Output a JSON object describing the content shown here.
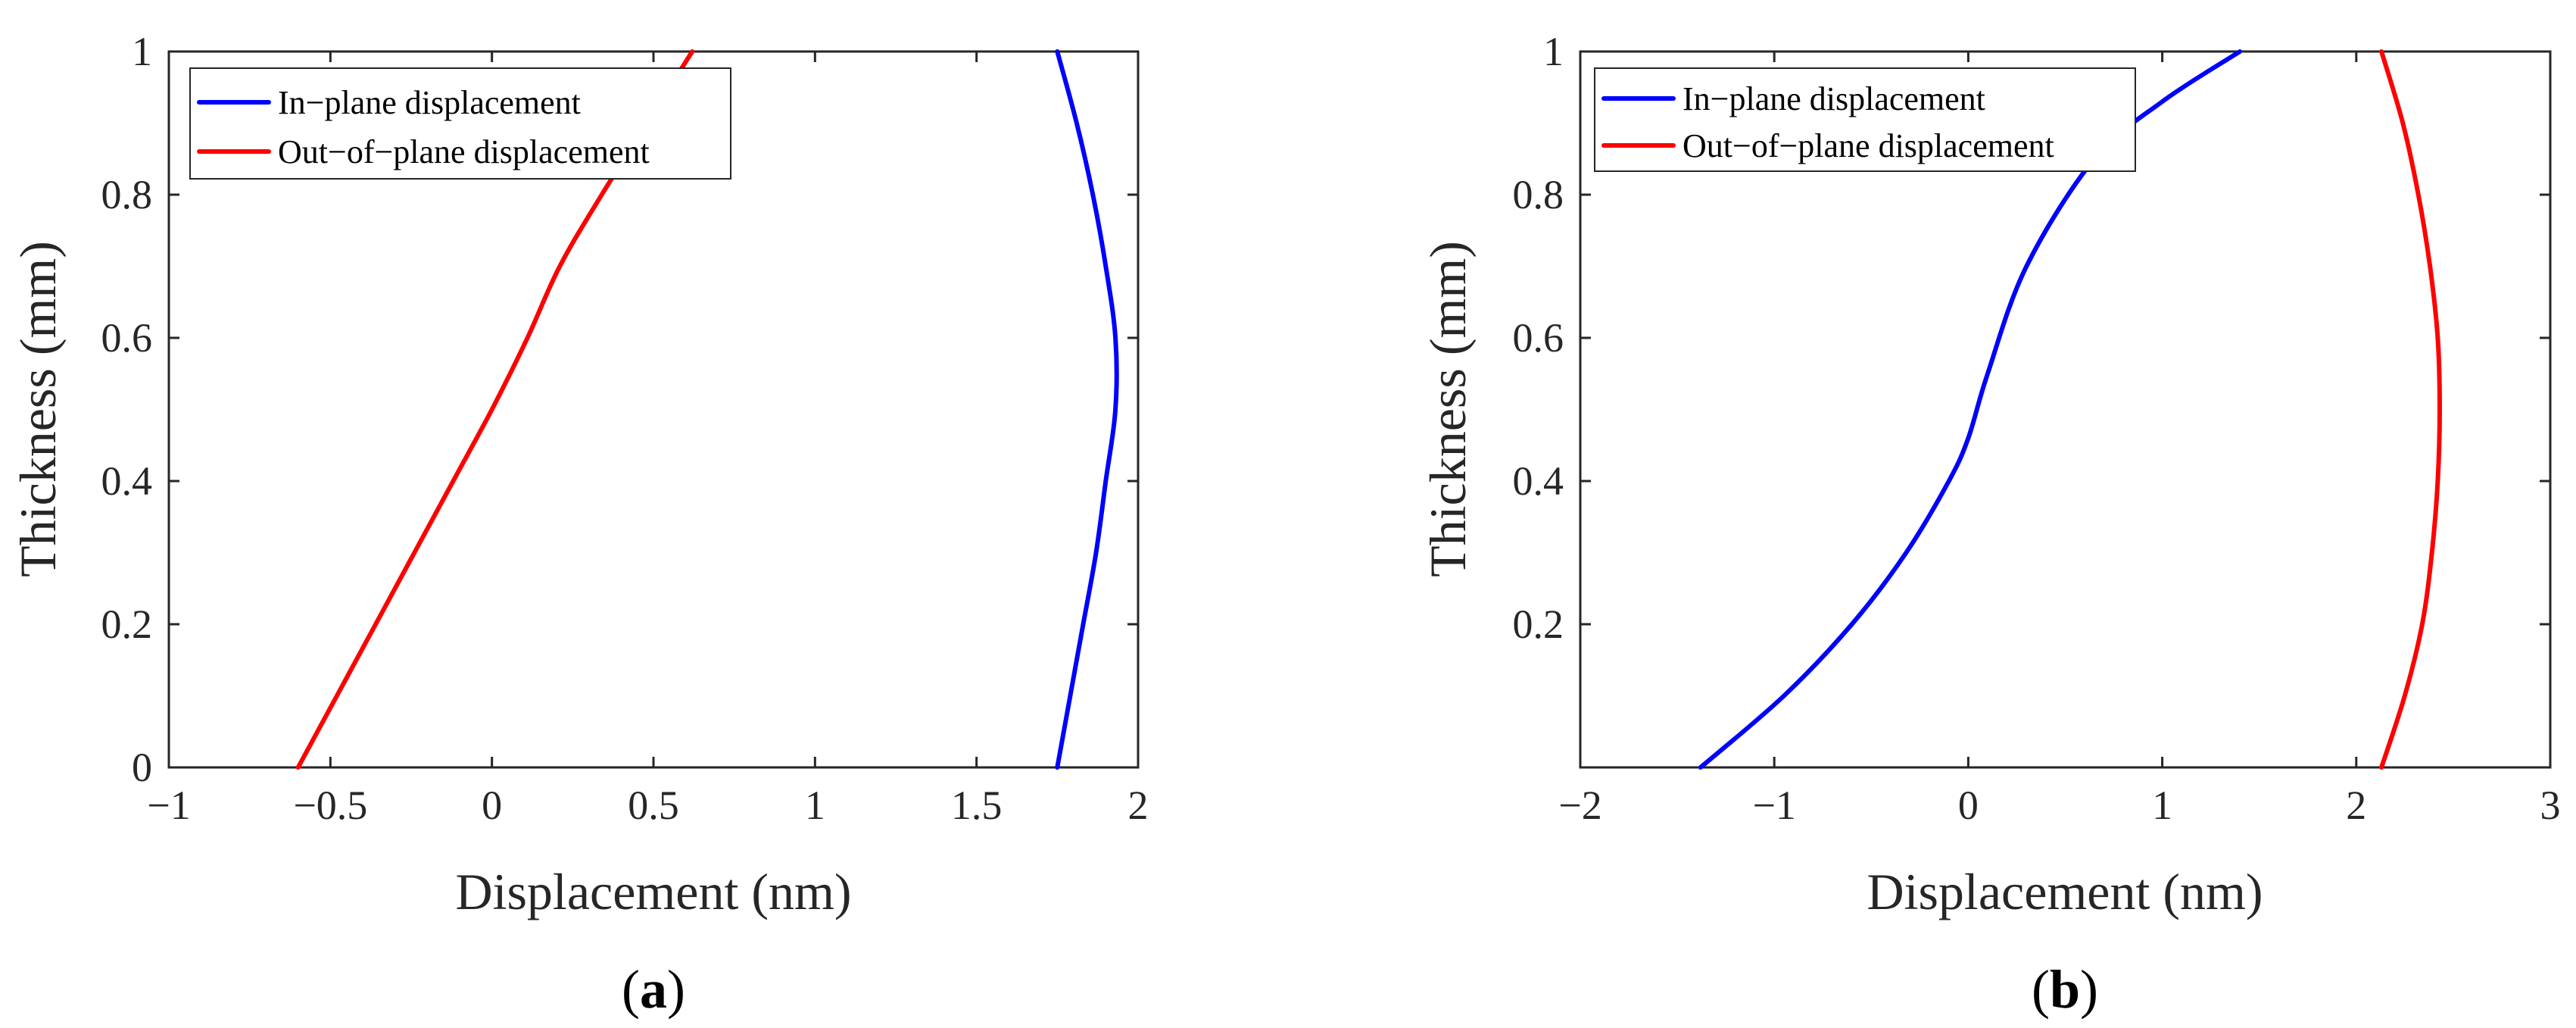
{
  "chart_data": [
    {
      "type": "line",
      "panel_label": "a",
      "xlabel": "Displacement (nm)",
      "ylabel": "Thickness (mm)",
      "xlim": [
        -1,
        2
      ],
      "ylim": [
        0,
        1
      ],
      "xticks": [
        -1,
        -0.5,
        0,
        0.5,
        1,
        1.5,
        2
      ],
      "xtick_labels": [
        "−1",
        "−0.5",
        "0",
        "0.5",
        "1",
        "1.5",
        "2"
      ],
      "yticks": [
        0,
        0.2,
        0.4,
        0.6,
        0.8,
        1
      ],
      "ytick_labels": [
        "0",
        "0.2",
        "0.4",
        "0.6",
        "0.8",
        "1"
      ],
      "grid": false,
      "legend_position": "top-left",
      "series": [
        {
          "name": "In−plane displacement",
          "color": "#0000ff",
          "points": [
            [
              1.75,
              0
            ],
            [
              1.79,
              0.1
            ],
            [
              1.83,
              0.2
            ],
            [
              1.87,
              0.3
            ],
            [
              1.9,
              0.4
            ],
            [
              1.93,
              0.5
            ],
            [
              1.93,
              0.6
            ],
            [
              1.9,
              0.7
            ],
            [
              1.86,
              0.8
            ],
            [
              1.81,
              0.9
            ],
            [
              1.75,
              1.0
            ]
          ]
        },
        {
          "name": "Out−of−plane displacement",
          "color": "#ff0000",
          "points": [
            [
              -0.6,
              0
            ],
            [
              -0.48,
              0.1
            ],
            [
              -0.36,
              0.2
            ],
            [
              -0.24,
              0.3
            ],
            [
              -0.12,
              0.4
            ],
            [
              0,
              0.5
            ],
            [
              0.11,
              0.6
            ],
            [
              0.21,
              0.7
            ],
            [
              0.34,
              0.8
            ],
            [
              0.48,
              0.9
            ],
            [
              0.62,
              1.0
            ]
          ]
        }
      ]
    },
    {
      "type": "line",
      "panel_label": "b",
      "xlabel": "Displacement (nm)",
      "ylabel": "Thickness (mm)",
      "xlim": [
        -2,
        3
      ],
      "ylim": [
        0,
        1
      ],
      "xticks": [
        -2,
        -1,
        0,
        1,
        2,
        3
      ],
      "xtick_labels": [
        "−2",
        "−1",
        "0",
        "1",
        "2",
        "3"
      ],
      "yticks": [
        0.2,
        0.4,
        0.6,
        0.8,
        1
      ],
      "ytick_labels": [
        "0.2",
        "0.4",
        "0.6",
        "0.8",
        "1"
      ],
      "grid": false,
      "legend_position": "top-left",
      "series": [
        {
          "name": "In−plane displacement",
          "color": "#0000ff",
          "points": [
            [
              -1.38,
              0
            ],
            [
              -0.95,
              0.1
            ],
            [
              -0.6,
              0.2
            ],
            [
              -0.32,
              0.3
            ],
            [
              -0.1,
              0.4
            ],
            [
              0,
              0.46
            ],
            [
              0.1,
              0.55
            ],
            [
              0.3,
              0.7
            ],
            [
              0.65,
              0.85
            ],
            [
              1.0,
              0.93
            ],
            [
              1.4,
              1.0
            ]
          ]
        },
        {
          "name": "Out−of−plane displacement",
          "color": "#ff0000",
          "points": [
            [
              2.13,
              0
            ],
            [
              2.25,
              0.1
            ],
            [
              2.34,
              0.2
            ],
            [
              2.39,
              0.3
            ],
            [
              2.42,
              0.4
            ],
            [
              2.43,
              0.5
            ],
            [
              2.42,
              0.6
            ],
            [
              2.38,
              0.7
            ],
            [
              2.32,
              0.8
            ],
            [
              2.24,
              0.9
            ],
            [
              2.13,
              1.0
            ]
          ]
        }
      ]
    }
  ]
}
